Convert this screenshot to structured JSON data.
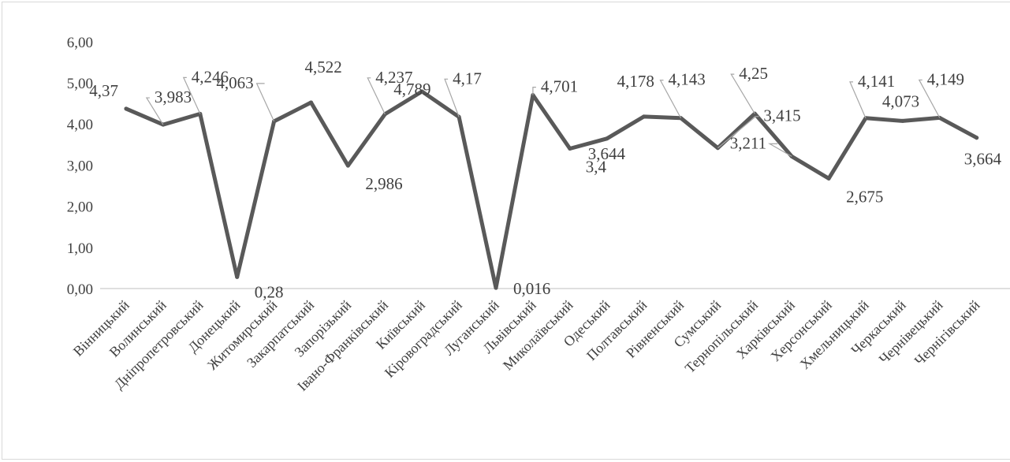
{
  "chart_data": {
    "type": "line",
    "title": "",
    "xlabel": "",
    "ylabel": "",
    "ylim": [
      0,
      6
    ],
    "yticks": [
      "0,00",
      "1,00",
      "2,00",
      "3,00",
      "4,00",
      "5,00",
      "6,00"
    ],
    "grid": false,
    "legend": "none",
    "categories": [
      "Вінницький",
      "Волинський",
      "Дніпропетровський",
      "Донецький",
      "Житомирський",
      "Закарпатський",
      "Запорізький",
      "Івано-Франківський",
      "Київський",
      "Кіровоградський",
      "Луганський",
      "Львівський",
      "Миколаївський",
      "Одеський",
      "Полтавський",
      "Рівненський",
      "Сумський",
      "Тернопільський",
      "Харківський",
      "Херсонський",
      "Хмельницький",
      "Черкаський",
      "Чернівецький",
      "Чернігівський"
    ],
    "series": [
      {
        "values": [
          4.37,
          3.983,
          4.246,
          0.28,
          4.063,
          4.522,
          2.986,
          4.237,
          4.789,
          4.17,
          0.016,
          4.701,
          3.4,
          3.644,
          4.178,
          4.143,
          3.415,
          4.25,
          3.211,
          2.675,
          4.141,
          4.073,
          4.149,
          3.664
        ],
        "labels": [
          "4,37",
          "3,983",
          "4,246",
          "0,28",
          "4,063",
          "4,522",
          "2,986",
          "4,237",
          "4,789",
          "4,17",
          "0,016",
          "4,701",
          "3,4",
          "3,644",
          "4,178",
          "4,143",
          "3,415",
          "4,25",
          "3,211",
          "2,675",
          "4,141",
          "4,073",
          "4,149",
          "3,664"
        ],
        "color": "#595959"
      }
    ]
  }
}
